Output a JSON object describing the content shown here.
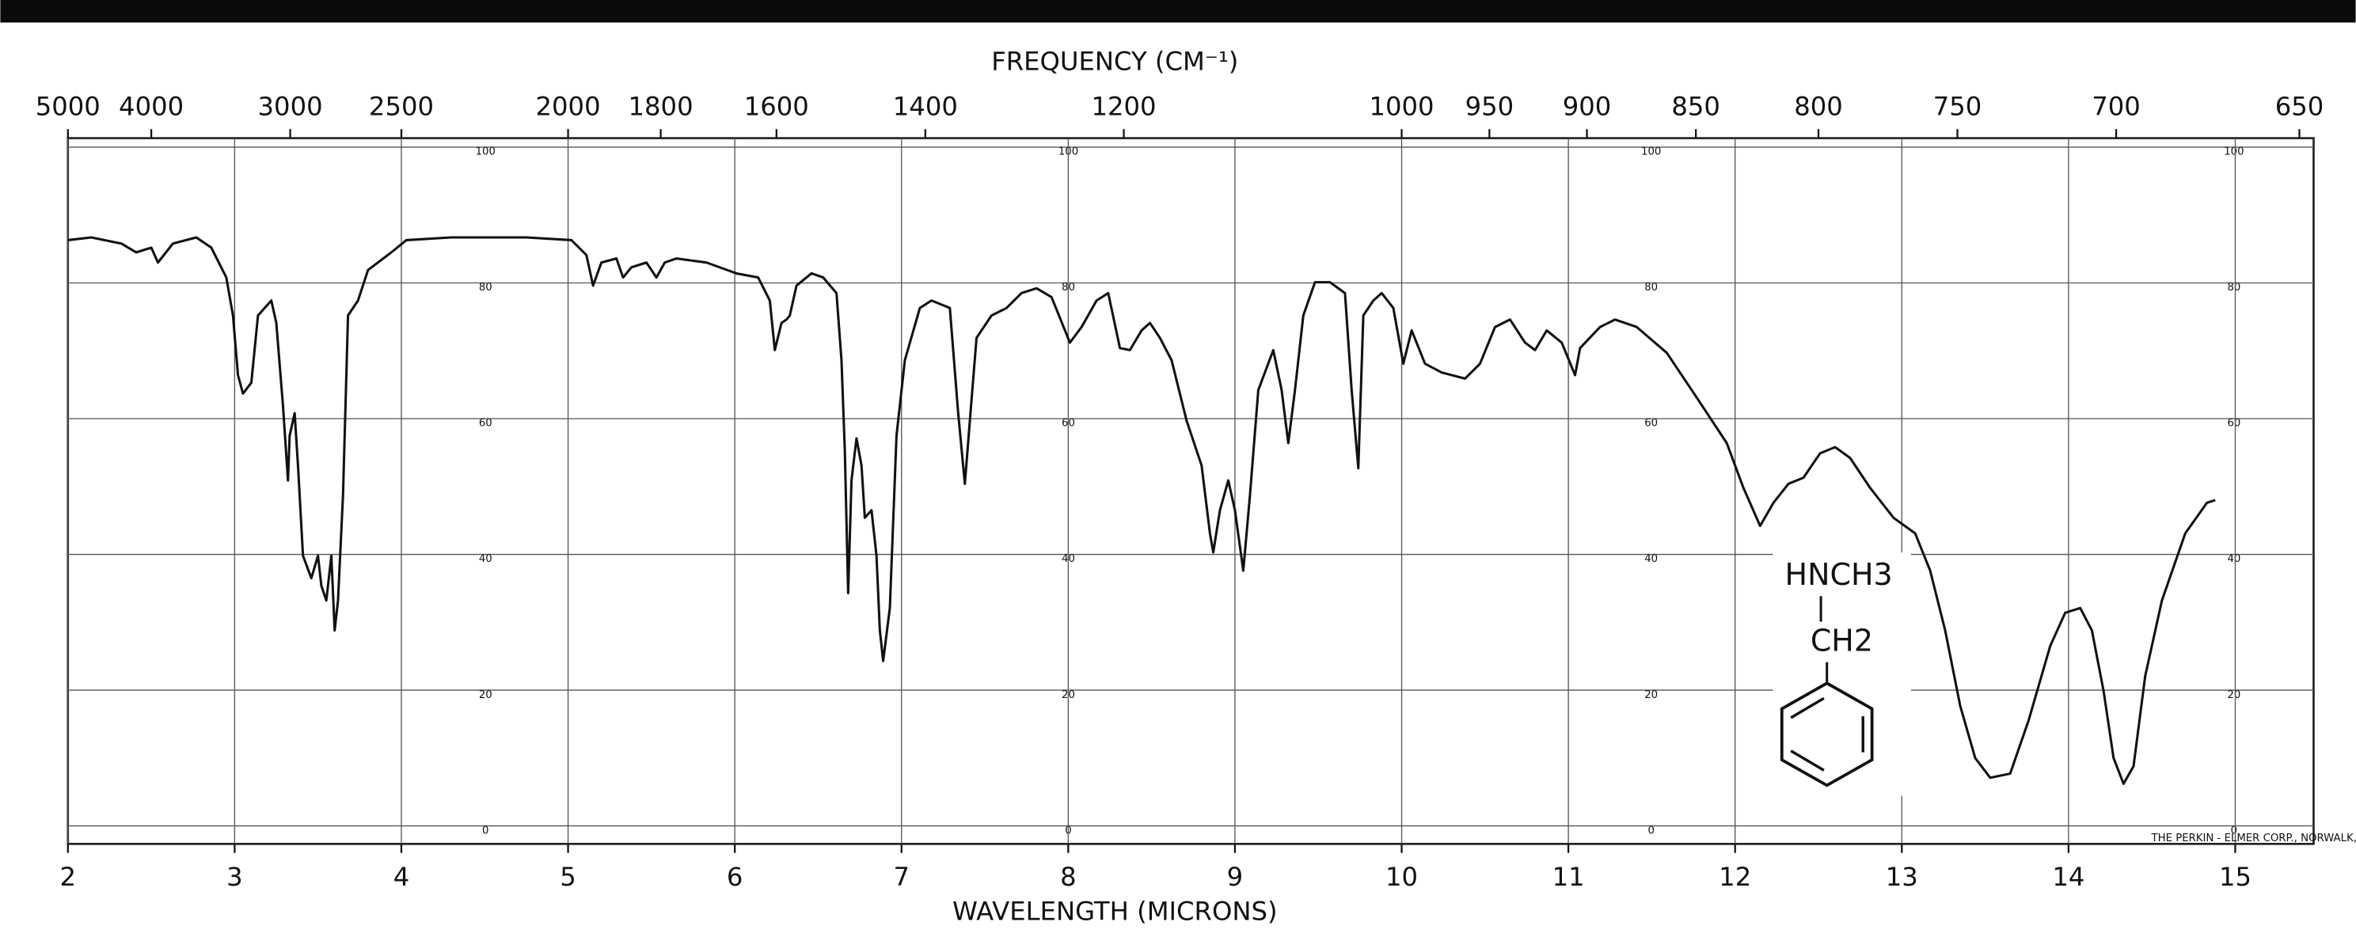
{
  "chart_data": {
    "type": "line",
    "x2label": "FREQUENCY (CM⁻¹)",
    "xlabel": "WAVELENGTH (MICRONS)",
    "color": "#111111",
    "xlim": [
      2,
      15.47
    ],
    "xticks": [
      2,
      3,
      4,
      5,
      6,
      7,
      8,
      9,
      10,
      11,
      12,
      13,
      14,
      15
    ],
    "x2scale": "reciprocal",
    "x2ticks": [
      5000,
      4000,
      3000,
      2500,
      2000,
      1800,
      1600,
      1400,
      1200,
      1000,
      950,
      900,
      850,
      800,
      750,
      700,
      650
    ],
    "ylim": [
      0,
      100
    ],
    "yticks": [
      0,
      20,
      40,
      60,
      80,
      100
    ],
    "grid": true,
    "annotation": "THE PERKIN - ELMER CORP., NORWALK, CONN.",
    "structure": [
      "HNCH3",
      "CH2"
    ],
    "x": [
      2.0,
      2.14,
      2.32,
      2.41,
      2.5,
      2.54,
      2.63,
      2.77,
      2.86,
      2.95,
      2.99,
      3.02,
      3.05,
      3.1,
      3.14,
      3.22,
      3.25,
      3.29,
      3.32,
      3.33,
      3.36,
      3.38,
      3.41,
      3.46,
      3.5,
      3.52,
      3.55,
      3.58,
      3.6,
      3.62,
      3.65,
      3.68,
      3.74,
      3.8,
      3.94,
      4.03,
      4.3,
      4.75,
      5.02,
      5.11,
      5.15,
      5.2,
      5.29,
      5.33,
      5.38,
      5.47,
      5.53,
      5.58,
      5.65,
      5.83,
      6.01,
      6.14,
      6.21,
      6.24,
      6.28,
      6.31,
      6.33,
      6.37,
      6.46,
      6.53,
      6.61,
      6.64,
      6.66,
      6.68,
      6.7,
      6.73,
      6.76,
      6.78,
      6.82,
      6.85,
      6.87,
      6.89,
      6.93,
      6.97,
      7.02,
      7.11,
      7.18,
      7.29,
      7.34,
      7.38,
      7.41,
      7.45,
      7.54,
      7.63,
      7.72,
      7.81,
      7.9,
      8.01,
      8.08,
      8.17,
      8.24,
      8.31,
      8.37,
      8.44,
      8.49,
      8.55,
      8.62,
      8.71,
      8.8,
      8.85,
      8.87,
      8.91,
      8.96,
      9.0,
      9.05,
      9.09,
      9.14,
      9.23,
      9.28,
      9.32,
      9.36,
      9.41,
      9.48,
      9.57,
      9.66,
      9.7,
      9.74,
      9.77,
      9.83,
      9.88,
      9.95,
      10.01,
      10.06,
      10.14,
      10.24,
      10.38,
      10.47,
      10.56,
      10.65,
      10.74,
      10.8,
      10.87,
      10.96,
      11.04,
      11.07,
      11.19,
      11.28,
      11.41,
      11.59,
      11.77,
      11.95,
      12.05,
      12.15,
      12.23,
      12.32,
      12.41,
      12.51,
      12.6,
      12.69,
      12.81,
      12.95,
      13.08,
      13.17,
      13.26,
      13.35,
      13.44,
      13.53,
      13.65,
      13.76,
      13.89,
      13.98,
      14.07,
      14.14,
      14.21,
      14.27,
      14.33,
      14.39,
      14.46,
      14.56,
      14.7,
      14.83,
      14.88
    ],
    "values": [
      86.3,
      86.7,
      85.8,
      84.5,
      85.2,
      83.0,
      85.8,
      86.7,
      85.2,
      80.8,
      75.2,
      66.4,
      63.7,
      65.3,
      75.2,
      77.4,
      74.1,
      61.9,
      50.9,
      57.5,
      60.8,
      53.1,
      39.8,
      36.5,
      39.8,
      35.4,
      33.2,
      39.8,
      28.8,
      33.2,
      48.7,
      75.2,
      77.4,
      81.9,
      84.5,
      86.3,
      86.7,
      86.7,
      86.3,
      84.1,
      79.6,
      83.0,
      83.6,
      80.8,
      82.3,
      83.0,
      80.8,
      83.0,
      83.6,
      83.0,
      81.4,
      80.8,
      77.4,
      70.1,
      74.1,
      74.6,
      75.2,
      79.6,
      81.4,
      80.8,
      78.5,
      68.6,
      55.3,
      34.3,
      50.9,
      57.1,
      53.1,
      45.4,
      46.5,
      39.8,
      28.8,
      24.3,
      32.1,
      57.5,
      68.6,
      76.3,
      77.4,
      76.3,
      60.8,
      50.4,
      59.7,
      71.9,
      75.2,
      76.3,
      78.5,
      79.2,
      77.9,
      71.2,
      73.5,
      77.4,
      78.5,
      70.4,
      70.1,
      73.0,
      74.1,
      71.9,
      68.6,
      59.7,
      53.1,
      43.1,
      40.3,
      46.5,
      50.9,
      46.5,
      37.6,
      48.7,
      64.2,
      70.1,
      64.2,
      56.4,
      64.2,
      75.2,
      80.1,
      80.1,
      78.5,
      64.2,
      52.7,
      75.2,
      77.4,
      78.5,
      76.3,
      68.1,
      73.0,
      68.1,
      66.8,
      65.9,
      68.1,
      73.5,
      74.6,
      71.2,
      70.1,
      73.0,
      71.2,
      66.4,
      70.4,
      73.5,
      74.6,
      73.5,
      69.7,
      63.1,
      56.4,
      49.8,
      44.2,
      47.6,
      50.4,
      51.3,
      54.9,
      55.8,
      54.2,
      49.8,
      45.4,
      43.1,
      37.6,
      28.8,
      17.7,
      10.0,
      7.1,
      7.7,
      15.5,
      26.5,
      31.4,
      32.1,
      28.8,
      19.9,
      10.0,
      6.2,
      8.8,
      22.1,
      33.2,
      43.1,
      47.6,
      48.0
    ]
  }
}
